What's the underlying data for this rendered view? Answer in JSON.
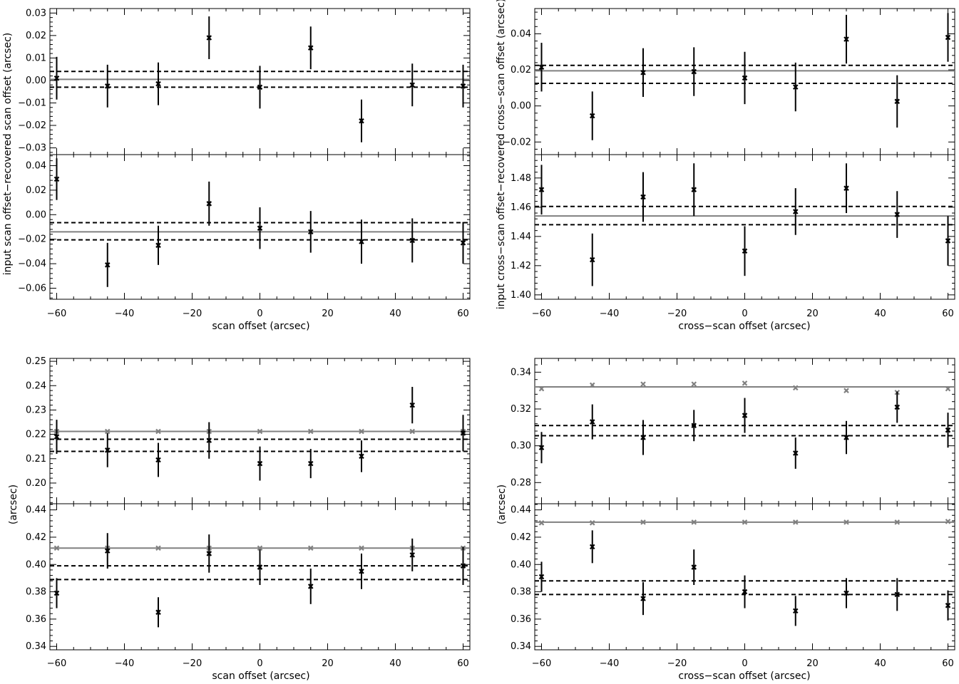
{
  "chart_data": [
    {
      "type": "scatter",
      "xlabel": "scan offset (arcsec)",
      "ylabel": "input scan offset−recovered scan offset (arcsec)",
      "panels": [
        {
          "ylim": [
            -0.033,
            0.032
          ],
          "yticks": [
            "-0.03",
            "-0.02",
            "-0.01",
            "0.00",
            "0.01",
            "0.02",
            "0.03"
          ],
          "ytick_values": [
            -0.03,
            -0.02,
            -0.01,
            0.0,
            0.01,
            0.02,
            0.03
          ],
          "series": [
            {
              "color": "#000000",
              "x": [
                -60,
                -45,
                -30,
                -15,
                0,
                15,
                30,
                45,
                60
              ],
              "y": [
                0.001,
                -0.0025,
                -0.0015,
                0.019,
                -0.003,
                0.0145,
                -0.018,
                -0.002,
                -0.0025
              ],
              "err": [
                0.0095,
                0.0095,
                0.0095,
                0.0095,
                0.0095,
                0.0095,
                0.0095,
                0.0095,
                0.0095
              ]
            }
          ],
          "hlines": [
            {
              "y": 0.0005,
              "style": "solid",
              "color": "#808080"
            },
            {
              "y": 0.004,
              "style": "dashed",
              "color": "#000000"
            },
            {
              "y": -0.003,
              "style": "dashed",
              "color": "#000000"
            }
          ]
        },
        {
          "ylim": [
            -0.069,
            0.049
          ],
          "yticks": [
            "0.04",
            "0.02",
            "0.00",
            "-0.02",
            "-0.04",
            "-0.06"
          ],
          "ytick_values": [
            0.04,
            0.02,
            0.0,
            -0.02,
            -0.04,
            -0.06
          ],
          "series": [
            {
              "color": "#000000",
              "x": [
                -60,
                -45,
                -30,
                -15,
                0,
                15,
                30,
                45,
                60
              ],
              "y": [
                0.029,
                -0.041,
                -0.025,
                0.009,
                -0.011,
                -0.014,
                -0.022,
                -0.021,
                -0.023
              ],
              "err": [
                0.017,
                0.018,
                0.016,
                0.018,
                0.017,
                0.017,
                0.018,
                0.018,
                0.017
              ]
            }
          ],
          "hlines": [
            {
              "y": -0.014,
              "style": "solid",
              "color": "#808080"
            },
            {
              "y": -0.0065,
              "style": "dashed",
              "color": "#000000"
            },
            {
              "y": -0.0205,
              "style": "dashed",
              "color": "#000000"
            }
          ]
        }
      ],
      "xlim": [
        -62,
        62
      ],
      "xticks": [
        -60,
        -40,
        -20,
        0,
        20,
        40,
        60
      ]
    },
    {
      "type": "scatter",
      "xlabel": "cross−scan offset (arcsec)",
      "ylabel": "input cross−scan offset−recovered cross−scan offset (arcsec)",
      "panels": [
        {
          "ylim": [
            -0.027,
            0.054
          ],
          "yticks": [
            "0.04",
            "0.02",
            "0.00",
            "-0.02"
          ],
          "ytick_values": [
            0.04,
            0.02,
            0.0,
            -0.02
          ],
          "series": [
            {
              "color": "#000000",
              "x": [
                -60,
                -45,
                -30,
                -15,
                0,
                15,
                30,
                45,
                60
              ],
              "y": [
                0.0215,
                -0.0055,
                0.0185,
                0.019,
                0.0155,
                0.0105,
                0.037,
                0.0025,
                0.038
              ],
              "err": [
                0.0135,
                0.0135,
                0.0135,
                0.0135,
                0.0145,
                0.0135,
                0.0135,
                0.0145,
                0.0135
              ]
            }
          ],
          "hlines": [
            {
              "y": 0.0195,
              "style": "solid",
              "color": "#808080"
            },
            {
              "y": 0.0225,
              "style": "dashed",
              "color": "#000000"
            },
            {
              "y": 0.0125,
              "style": "dashed",
              "color": "#000000"
            }
          ]
        },
        {
          "ylim": [
            1.397,
            1.496
          ],
          "yticks": [
            "1.48",
            "1.46",
            "1.44",
            "1.42",
            "1.40"
          ],
          "ytick_values": [
            1.48,
            1.46,
            1.44,
            1.42,
            1.4
          ],
          "series": [
            {
              "color": "#000000",
              "x": [
                -60,
                -45,
                -30,
                -15,
                0,
                15,
                30,
                45,
                60
              ],
              "y": [
                1.472,
                1.424,
                1.467,
                1.472,
                1.43,
                1.457,
                1.473,
                1.455,
                1.437
              ],
              "err": [
                0.017,
                0.018,
                0.017,
                0.018,
                0.017,
                0.016,
                0.017,
                0.016,
                0.017
              ]
            }
          ],
          "hlines": [
            {
              "y": 1.454,
              "style": "solid",
              "color": "#808080"
            },
            {
              "y": 1.4605,
              "style": "dashed",
              "color": "#000000"
            },
            {
              "y": 1.448,
              "style": "dashed",
              "color": "#000000"
            }
          ]
        }
      ],
      "xlim": [
        -62,
        62
      ],
      "xticks": [
        -60,
        -40,
        -20,
        0,
        20,
        40,
        60
      ]
    },
    {
      "type": "scatter",
      "xlabel": "scan offset (arcsec)",
      "ylabel": "(arcsec)",
      "panels": [
        {
          "ylim": [
            0.1915,
            0.2512
          ],
          "yticks": [
            "0.25",
            "0.24",
            "0.23",
            "0.22",
            "0.21",
            "0.20"
          ],
          "ytick_values": [
            0.25,
            0.24,
            0.23,
            0.22,
            0.21,
            0.2
          ],
          "series": [
            {
              "color": "#808080",
              "x": [
                -60,
                -45,
                -30,
                -15,
                0,
                15,
                30,
                45,
                60
              ],
              "y": [
                0.2212,
                0.2212,
                0.2212,
                0.2212,
                0.2212,
                0.2212,
                0.2212,
                0.2212,
                0.2212
              ]
            },
            {
              "color": "#000000",
              "x": [
                -60,
                -45,
                -30,
                -15,
                0,
                15,
                30,
                45,
                60
              ],
              "y": [
                0.219,
                0.2135,
                0.2095,
                0.2175,
                0.208,
                0.208,
                0.211,
                0.232,
                0.2205
              ],
              "err": [
                0.007,
                0.007,
                0.007,
                0.0075,
                0.007,
                0.006,
                0.0065,
                0.0075,
                0.0075
              ]
            }
          ],
          "hlines": [
            {
              "y": 0.2212,
              "style": "solid",
              "color": "#808080"
            },
            {
              "y": 0.218,
              "style": "dashed",
              "color": "#000000"
            },
            {
              "y": 0.213,
              "style": "dashed",
              "color": "#000000"
            }
          ]
        },
        {
          "ylim": [
            0.3375,
            0.4445
          ],
          "yticks": [
            "0.44",
            "0.42",
            "0.40",
            "0.38",
            "0.36",
            "0.34"
          ],
          "ytick_values": [
            0.44,
            0.42,
            0.4,
            0.38,
            0.36,
            0.34
          ],
          "series": [
            {
              "color": "#808080",
              "x": [
                -60,
                -45,
                -30,
                -15,
                0,
                15,
                30,
                45,
                60
              ],
              "y": [
                0.412,
                0.412,
                0.412,
                0.412,
                0.412,
                0.412,
                0.412,
                0.412,
                0.412
              ]
            },
            {
              "color": "#000000",
              "x": [
                -60,
                -45,
                -30,
                -15,
                0,
                15,
                30,
                45,
                60
              ],
              "y": [
                0.379,
                0.41,
                0.365,
                0.408,
                0.398,
                0.384,
                0.395,
                0.407,
                0.399
              ],
              "err": [
                0.011,
                0.013,
                0.011,
                0.014,
                0.013,
                0.013,
                0.013,
                0.012,
                0.014
              ]
            }
          ],
          "hlines": [
            {
              "y": 0.412,
              "style": "solid",
              "color": "#808080"
            },
            {
              "y": 0.399,
              "style": "dashed",
              "color": "#000000"
            },
            {
              "y": 0.389,
              "style": "dashed",
              "color": "#000000"
            }
          ]
        }
      ],
      "xlim": [
        -62,
        62
      ],
      "xticks": [
        -60,
        -40,
        -20,
        0,
        20,
        40,
        60
      ]
    },
    {
      "type": "scatter",
      "xlabel": "cross−scan offset (arcsec)",
      "ylabel": "(arcsec)",
      "panels": [
        {
          "ylim": [
            0.2685,
            0.3475
          ],
          "yticks": [
            "0.34",
            "0.32",
            "0.30",
            "0.28"
          ],
          "ytick_values": [
            0.34,
            0.32,
            0.3,
            0.28
          ],
          "series": [
            {
              "color": "#808080",
              "x": [
                -60,
                -45,
                -30,
                -15,
                0,
                15,
                30,
                45,
                60
              ],
              "y": [
                0.331,
                0.333,
                0.3335,
                0.3335,
                0.334,
                0.3315,
                0.33,
                0.329,
                0.331
              ]
            },
            {
              "color": "#000000",
              "x": [
                -60,
                -45,
                -30,
                -15,
                0,
                15,
                30,
                45,
                60
              ],
              "y": [
                0.299,
                0.313,
                0.3045,
                0.311,
                0.3165,
                0.296,
                0.3045,
                0.321,
                0.3085
              ],
              "err": [
                0.0085,
                0.0095,
                0.0095,
                0.0085,
                0.0095,
                0.0085,
                0.009,
                0.0085,
                0.0095
              ]
            }
          ],
          "hlines": [
            {
              "y": 0.332,
              "style": "solid",
              "color": "#808080"
            },
            {
              "y": 0.311,
              "style": "dashed",
              "color": "#000000"
            },
            {
              "y": 0.3055,
              "style": "dashed",
              "color": "#000000"
            }
          ]
        },
        {
          "ylim": [
            0.3375,
            0.4445
          ],
          "yticks": [
            "0.44",
            "0.42",
            "0.40",
            "0.38",
            "0.36",
            "0.34"
          ],
          "ytick_values": [
            0.44,
            0.42,
            0.4,
            0.38,
            0.36,
            0.34
          ],
          "series": [
            {
              "color": "#808080",
              "x": [
                -60,
                -45,
                -30,
                -15,
                0,
                15,
                30,
                45,
                60
              ],
              "y": [
                0.4305,
                0.4305,
                0.431,
                0.431,
                0.431,
                0.431,
                0.431,
                0.431,
                0.4315
              ]
            },
            {
              "color": "#000000",
              "x": [
                -60,
                -45,
                -30,
                -15,
                0,
                15,
                30,
                45,
                60
              ],
              "y": [
                0.391,
                0.413,
                0.375,
                0.398,
                0.38,
                0.366,
                0.379,
                0.378,
                0.37
              ],
              "err": [
                0.011,
                0.012,
                0.012,
                0.013,
                0.012,
                0.011,
                0.011,
                0.012,
                0.011
              ]
            }
          ],
          "hlines": [
            {
              "y": 0.431,
              "style": "solid",
              "color": "#808080"
            },
            {
              "y": 0.388,
              "style": "dashed",
              "color": "#000000"
            },
            {
              "y": 0.378,
              "style": "dashed",
              "color": "#000000"
            }
          ]
        }
      ],
      "xlim": [
        -62,
        62
      ],
      "xticks": [
        -60,
        -40,
        -20,
        0,
        20,
        40,
        60
      ]
    }
  ]
}
